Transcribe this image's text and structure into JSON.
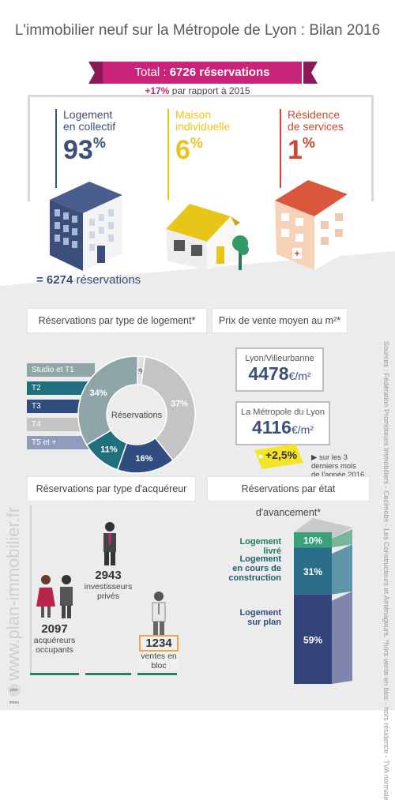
{
  "title": "L'immobilier neuf sur la Métropole de Lyon : Bilan 2016",
  "total": {
    "prefix": "Total : ",
    "value": "6726 réservations"
  },
  "growth": {
    "value": "+17%",
    "text": " par rapport à 2015"
  },
  "types": [
    {
      "label_lines": [
        "Logement",
        "en collectif"
      ],
      "percent": "93",
      "color": "#3b4f7a",
      "line_color": "#3b4f7a"
    },
    {
      "label_lines": [
        "Maison",
        "individuelle"
      ],
      "percent": "6",
      "color": "#e8c619",
      "line_color": "#e8c619"
    },
    {
      "label_lines": [
        "Résidence",
        "de services"
      ],
      "percent": "1",
      "color": "#c94a33",
      "line_color": "#c94a33"
    }
  ],
  "collectif_reservations": {
    "value": "= 6274",
    "text": " réservations"
  },
  "chart_data": [
    {
      "type": "pie",
      "title": "Réservations par type de logement*",
      "center_label": "Réservations",
      "categories": [
        "Studio et T1",
        "T2",
        "T3",
        "T4",
        "T5 et +"
      ],
      "values": [
        2,
        11,
        16,
        34,
        37
      ],
      "labels": [
        "2%",
        "11%",
        "16%",
        "34%",
        "37%"
      ],
      "colors": [
        "#8fa6a8",
        "#1f6f7c",
        "#2f4d7e",
        "#c4c4c4",
        "#8f9cbb"
      ],
      "legend": [
        "Studio et T1",
        "T2",
        "T3",
        "T4",
        "T5 et +"
      ]
    },
    {
      "type": "bar",
      "title": "Réservations par type d'acquéreur",
      "categories": [
        "acquéreurs occupants",
        "investisseurs privés",
        "ventes en bloc"
      ],
      "values": [
        2097,
        2943,
        1234
      ]
    },
    {
      "type": "bar",
      "title": "Réservations par état d'avancement*",
      "categories": [
        "Logement livré",
        "Logement en cours de construction",
        "Logement sur plan"
      ],
      "values": [
        10,
        31,
        59
      ],
      "labels": [
        "10%",
        "31%",
        "59%"
      ]
    }
  ],
  "pie_legend_colors": [
    "#8fa6a8",
    "#1f6f7c",
    "#2f4d7e",
    "#c4c4c4",
    "#8f9cbb"
  ],
  "price": {
    "title": "Prix de vente moyen au m²*",
    "cards": [
      {
        "label": "Lyon/Villeurbanne",
        "value": "4478",
        "unit": "€/m²"
      },
      {
        "label": "La Métropole du Lyon",
        "value": "4116",
        "unit": "€/m²"
      }
    ],
    "tag": "+2,5%",
    "tag_note_lines": [
      "▶ sur les 3",
      "derniers mois",
      "de l'année 2016"
    ]
  },
  "acquereurs": [
    {
      "value": "2097",
      "text_lines": [
        "acquéreurs",
        "occupants"
      ]
    },
    {
      "value": "2943",
      "text_lines": [
        "investisseurs",
        "privés"
      ]
    },
    {
      "value": "1234",
      "text_lines": [
        "ventes en",
        "bloc"
      ]
    }
  ],
  "avancement_labels": [
    {
      "lines": [
        "Logement livré"
      ],
      "color": "#1d7a5a"
    },
    {
      "lines": [
        "Logement",
        "en cours de",
        "construction"
      ],
      "color": "#1f5f6e"
    },
    {
      "lines": [
        "Logement",
        "sur plan"
      ],
      "color": "#2f4d7e"
    }
  ],
  "sources": "Sources : Fédération Promoteurs Immobiliers - Cecimobs - Les Constructeurs et Aménageurs. *hors vente en bloc - hors résidence - TVA normale",
  "watermark": "www.plan-immobilier.fr",
  "logo_text": "plan immo",
  "colors": {
    "accent": "#c8247a",
    "navy": "#3b4f7a",
    "yellow": "#e8c619",
    "red": "#c94a33"
  }
}
